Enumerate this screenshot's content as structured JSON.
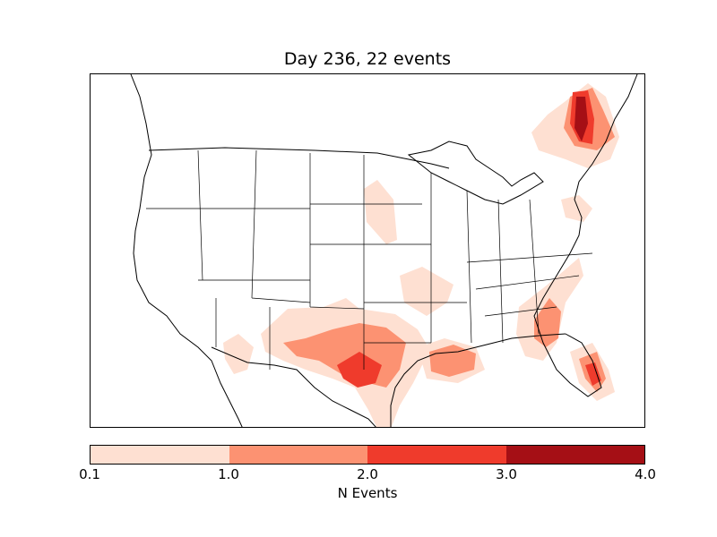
{
  "title": "Day 236, 22 events",
  "map": {
    "region": "Continental United States with state and country borders",
    "colors": {
      "level_0": "#fee0d2",
      "level_1": "#fc9272",
      "level_2": "#ef3b2c",
      "level_3": "#a50f15",
      "borders": "#000000"
    }
  },
  "colorbar": {
    "label": "N Events",
    "ticks": [
      "0.1",
      "1.0",
      "2.0",
      "3.0",
      "4.0"
    ],
    "segments": [
      {
        "from": 0.1,
        "to": 1.0,
        "color": "#fee0d2"
      },
      {
        "from": 1.0,
        "to": 2.0,
        "color": "#fc9272"
      },
      {
        "from": 2.0,
        "to": 3.0,
        "color": "#ef3b2c"
      },
      {
        "from": 3.0,
        "to": 4.0,
        "color": "#a50f15"
      }
    ]
  }
}
